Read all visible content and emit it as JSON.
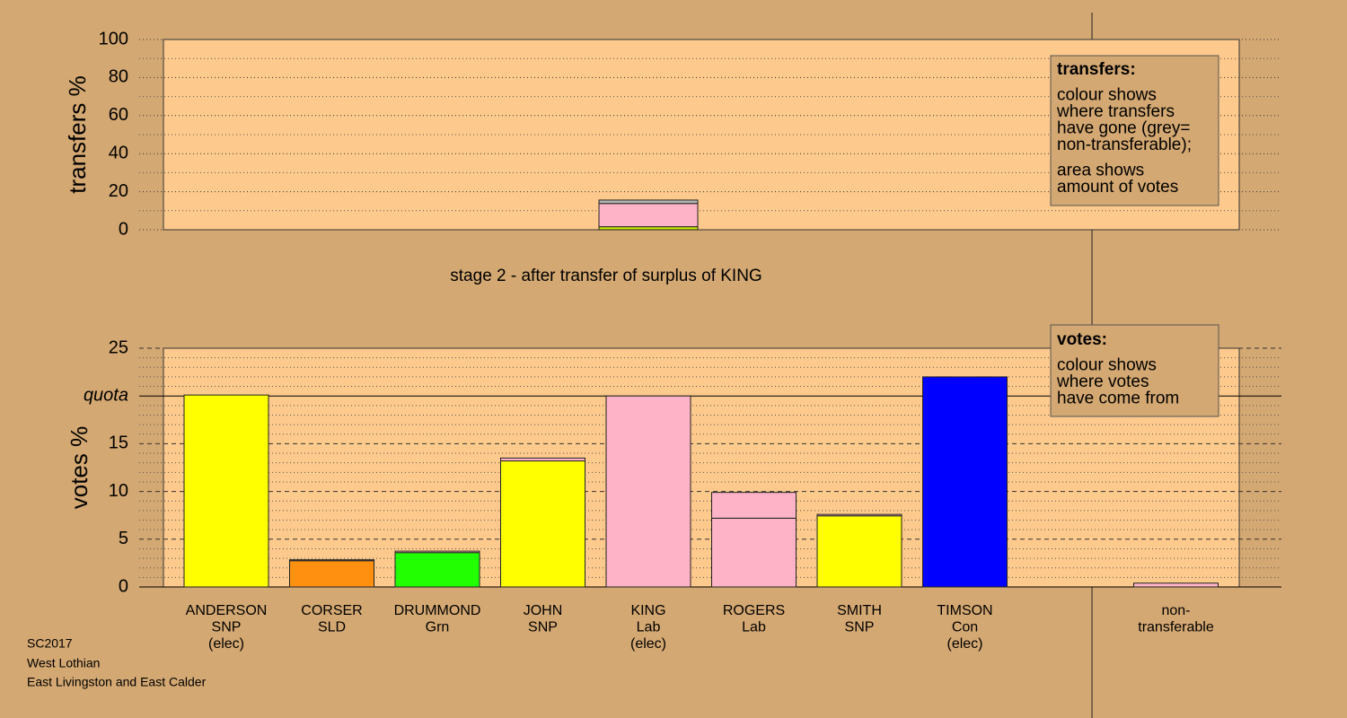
{
  "chart_data": [
    {
      "type": "stacked-bar",
      "ylabel": "transfers %",
      "ylim": [
        0,
        100
      ],
      "yticks": [
        0,
        20,
        40,
        60,
        80,
        100
      ],
      "minor_step": 10,
      "categories": [
        null,
        null,
        null,
        null,
        null,
        null,
        null,
        null,
        null,
        null
      ],
      "series": [
        {
          "color": "#c8e600",
          "values": [
            null,
            null,
            null,
            null,
            1.6,
            null,
            null,
            null,
            null,
            null
          ]
        },
        {
          "color": "#ffb3c6",
          "values": [
            null,
            null,
            null,
            null,
            12.2,
            null,
            null,
            null,
            null,
            null
          ]
        },
        {
          "color": "#b4b4b4",
          "values": [
            null,
            null,
            null,
            null,
            1.8,
            null,
            null,
            null,
            null,
            null
          ]
        }
      ],
      "annotation": {
        "title": "transfers:",
        "paragraphs": [
          [
            "colour shows",
            "where transfers",
            "have gone (grey=",
            "non-transferable);"
          ],
          [
            "area shows",
            "amount of votes"
          ]
        ]
      }
    },
    {
      "type": "stacked-bar",
      "title": "stage 2 - after transfer of surplus of KING",
      "ylabel": "votes %",
      "ylim": [
        0,
        25
      ],
      "yticks": [
        0,
        5,
        10,
        15,
        {
          "value": 20,
          "label": "quota"
        },
        25
      ],
      "minor_step": 1,
      "categories": [
        [
          "ANDERSON",
          "SNP",
          "(elec)"
        ],
        [
          "CORSER",
          "SLD"
        ],
        [
          "DRUMMOND",
          "Grn"
        ],
        [
          "JOHN",
          "SNP"
        ],
        [
          "KING",
          "Lab",
          "(elec)"
        ],
        [
          "ROGERS",
          "Lab"
        ],
        [
          "SMITH",
          "SNP"
        ],
        [
          "TIMSON",
          "Con",
          "(elec)"
        ],
        null,
        [
          "non-",
          "transferable"
        ]
      ],
      "series": [
        {
          "colors": [
            "#ffff00",
            "#ff9010",
            "#22ff00",
            "#ffff00",
            "#ffb3c6",
            "#ffb3c6",
            "#ffff00",
            "#0000ff",
            null,
            null
          ],
          "values": [
            20.1,
            2.75,
            3.6,
            13.2,
            20,
            7.2,
            7.45,
            22,
            null,
            null
          ]
        },
        {
          "color": "#ffb3c6",
          "values": [
            null,
            0.1,
            0.15,
            0.3,
            null,
            2.7,
            0.15,
            null,
            null,
            0.4
          ]
        }
      ],
      "annotation": {
        "title": "votes:",
        "paragraphs": [
          [
            "colour shows",
            "where votes",
            "have come from"
          ]
        ]
      }
    }
  ],
  "footer": [
    "SC2017",
    "West Lothian",
    "East Livingston and East Calder"
  ]
}
